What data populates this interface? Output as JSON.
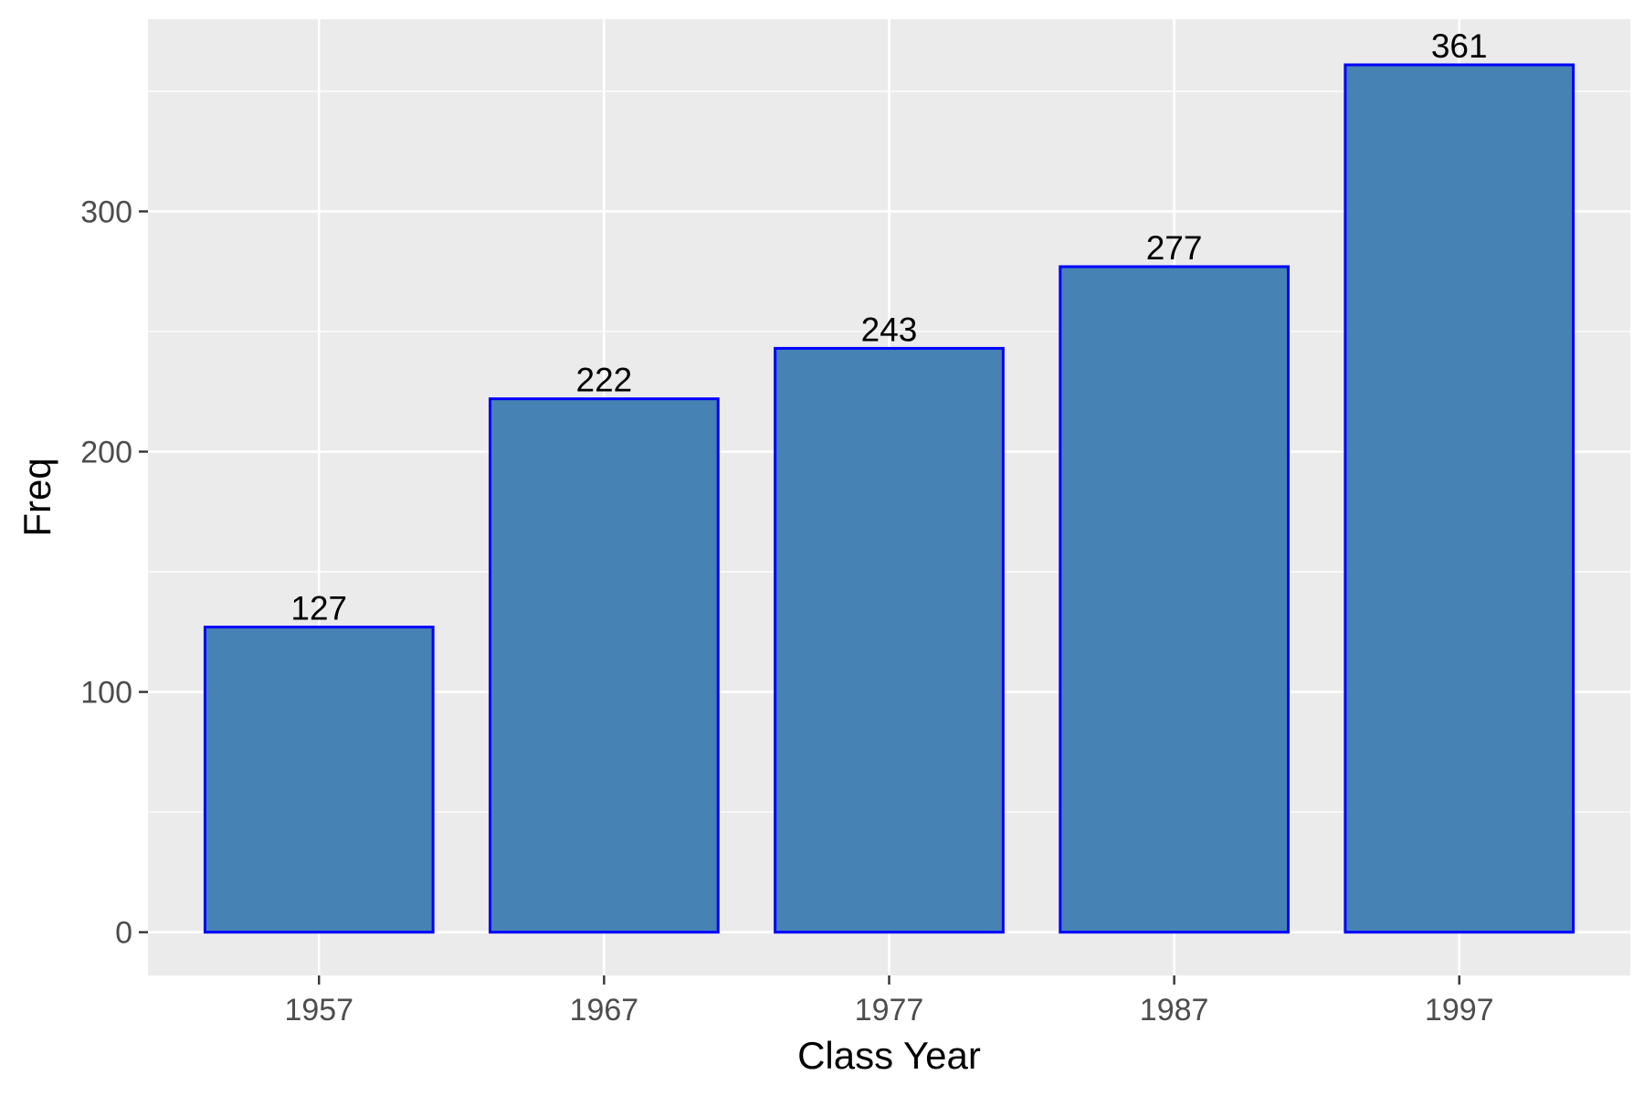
{
  "chart_data": {
    "type": "bar",
    "categories": [
      "1957",
      "1967",
      "1977",
      "1987",
      "1997"
    ],
    "values": [
      127,
      222,
      243,
      277,
      361
    ],
    "data_labels": [
      "127",
      "222",
      "243",
      "277",
      "361"
    ],
    "xlabel": "Class Year",
    "ylabel": "Freq",
    "ylim": [
      -18,
      380
    ],
    "yticks": [
      0,
      100,
      200,
      300
    ],
    "ytick_labels": [
      "0",
      "100",
      "200",
      "300"
    ],
    "y_minor_gridlines": [
      50,
      150,
      250,
      350
    ],
    "grid": true,
    "legend": "none",
    "colors": {
      "panel_background": "#ebebeb",
      "gridline": "#ffffff",
      "bar_fill": "#4682b4",
      "bar_outline": "#0000ff",
      "tick_text": "#4d4d4d",
      "tick_mark": "#333333",
      "label_text": "#000000"
    }
  }
}
